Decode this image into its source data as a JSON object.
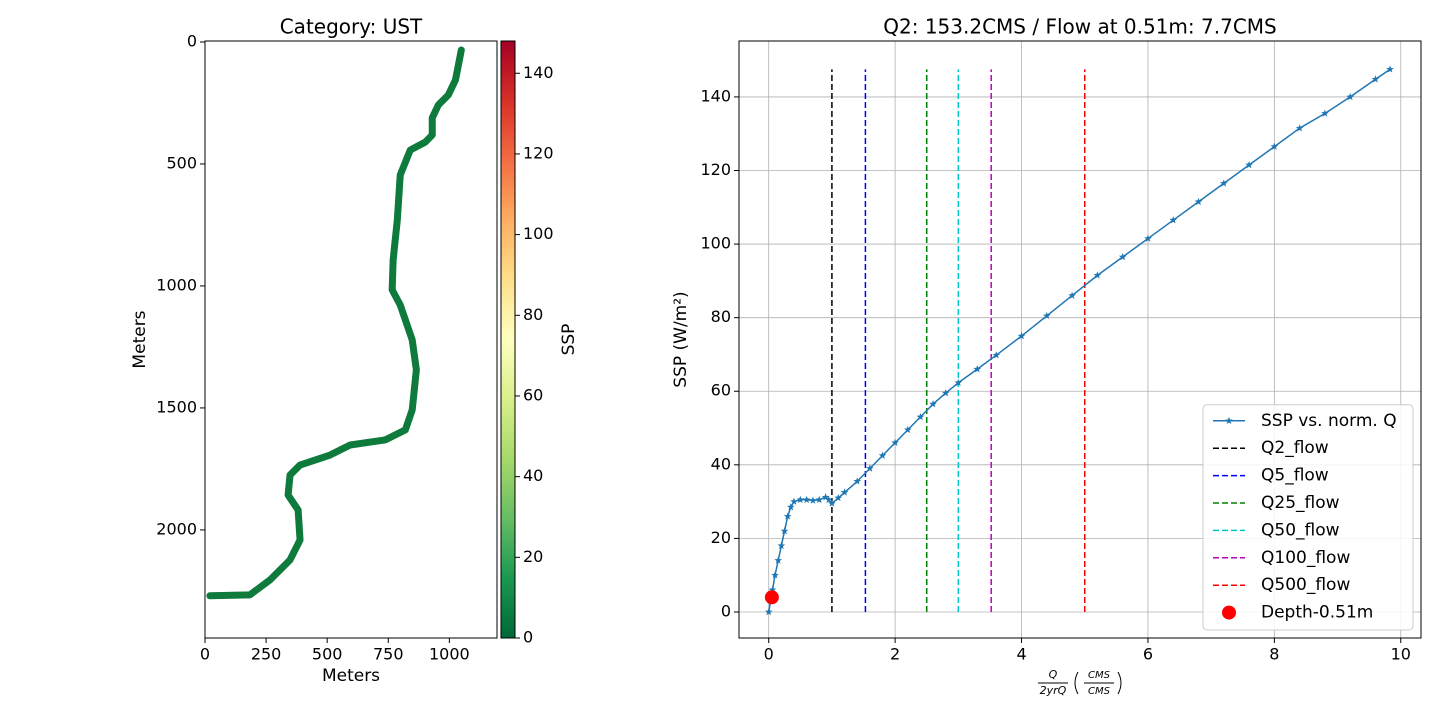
{
  "chart_data": [
    {
      "type": "line",
      "title": "Category: UST",
      "x_label": "Meters",
      "y_label": "Meters",
      "x": [
        1049,
        1025,
        996,
        955,
        930,
        930,
        902,
        840,
        799,
        787,
        770,
        766,
        799,
        848,
        865,
        848,
        820,
        738,
        594,
        512,
        389,
        348,
        340,
        381,
        389,
        348,
        266,
        184,
        20
      ],
      "series": [
        {
          "color": "#0e7a3c",
          "values": [
            33,
            156,
            217,
            258,
            311,
            381,
            410,
            443,
            545,
            730,
            893,
            1016,
            1078,
            1221,
            1344,
            1508,
            1590,
            1631,
            1652,
            1693,
            1734,
            1775,
            1857,
            1918,
            2041,
            2123,
            2205,
            2266,
            2270
          ]
        }
      ],
      "xlim": [
        0,
        1195
      ],
      "ylim": [
        2443,
        -4
      ],
      "xticks": [
        0,
        250,
        500,
        750,
        1000
      ],
      "yticks": [
        0,
        500,
        1000,
        1500,
        2000
      ],
      "colorbar": {
        "label": "SSP",
        "lim": [
          0,
          148
        ],
        "ticks": [
          0,
          20,
          40,
          60,
          80,
          100,
          120,
          140
        ],
        "colors": [
          "#006837",
          "#1a9850",
          "#66bd63",
          "#a6d96a",
          "#d9ef8b",
          "#ffffbf",
          "#fee08b",
          "#fdae61",
          "#f46d43",
          "#d73027",
          "#a50026"
        ]
      }
    },
    {
      "type": "line",
      "title": "Q2: 153.2CMS / Flow at 0.51m: 7.7CMS",
      "y_label": "SSP (W/m²)",
      "x_label": {
        "numerator": "Q",
        "denominator": "2yrQ",
        "unit_numerator": "CMS",
        "unit_denominator": "CMS"
      },
      "x": [
        0,
        0.03,
        0.06,
        0.1,
        0.15,
        0.2,
        0.25,
        0.3,
        0.35,
        0.4,
        0.5,
        0.6,
        0.7,
        0.8,
        0.9,
        0.95,
        1.0,
        1.1,
        1.2,
        1.4,
        1.6,
        1.8,
        2.0,
        2.2,
        2.4,
        2.6,
        2.8,
        3.0,
        3.3,
        3.6,
        4.0,
        4.4,
        4.8,
        5.2,
        5.6,
        6.0,
        6.4,
        6.8,
        7.2,
        7.6,
        8.0,
        8.4,
        8.8,
        9.2,
        9.6,
        9.83
      ],
      "series": [
        {
          "name": "SSP vs. norm. Q",
          "color": "#1f77b4",
          "marker": "star",
          "values": [
            0,
            3,
            6,
            10,
            14,
            18,
            22,
            26,
            28.5,
            30,
            30.5,
            30.5,
            30.3,
            30.5,
            31.2,
            30.5,
            29.5,
            31,
            32.5,
            35.5,
            39,
            42.5,
            46,
            49.5,
            53,
            56.5,
            59.5,
            62.3,
            66,
            69.8,
            75,
            80.5,
            86,
            91.5,
            96.5,
            101.5,
            106.5,
            111.5,
            116.5,
            121.5,
            126.5,
            131.5,
            135.5,
            140,
            144.8,
            147.5
          ]
        }
      ],
      "vlines": [
        {
          "name": "Q2_flow",
          "color": "#000000",
          "x": 1
        },
        {
          "name": "Q5_flow",
          "color": "#0000ff",
          "x": 1.53
        },
        {
          "name": "Q25_flow",
          "color": "#008000",
          "x": 2.5
        },
        {
          "name": "Q50_flow",
          "color": "#00c8c8",
          "x": 3
        },
        {
          "name": "Q100_flow",
          "color": "#c000c0",
          "x": 3.52
        },
        {
          "name": "Q500_flow",
          "color": "#ff0000",
          "x": 5
        }
      ],
      "points": [
        {
          "name": "Depth-0.51m",
          "color": "#ff0000",
          "x": 0.05,
          "y": 4
        }
      ],
      "xlim": [
        -0.47,
        10.32
      ],
      "ylim": [
        -7.07,
        155.2
      ],
      "xticks": [
        0,
        2,
        4,
        6,
        8,
        10
      ],
      "yticks": [
        0,
        20,
        40,
        60,
        80,
        100,
        120,
        140
      ],
      "grid": true,
      "legend": "lower right"
    }
  ]
}
